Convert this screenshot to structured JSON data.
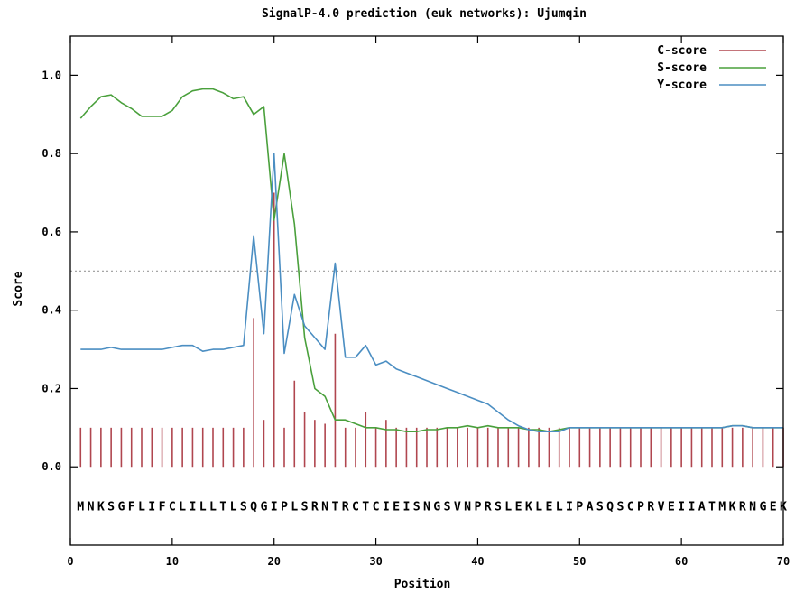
{
  "chart_data": {
    "type": "line",
    "title": "SignalP-4.0 prediction (euk networks): Ujumqin",
    "xlabel": "Position",
    "ylabel": "Score",
    "xlim": [
      0,
      70
    ],
    "ylim": [
      -0.2,
      1.1
    ],
    "x_ticks": [
      0,
      10,
      20,
      30,
      40,
      50,
      60,
      70
    ],
    "y_ticks": [
      0.0,
      0.2,
      0.4,
      0.6,
      0.8,
      1.0
    ],
    "x_tick_labels": [
      "0",
      "10",
      "20",
      "30",
      "40",
      "50",
      "60",
      "70"
    ],
    "y_tick_labels": [
      "0.0",
      "0.2",
      "0.4",
      "0.6",
      "0.8",
      "1.0"
    ],
    "threshold": 0.5,
    "legend_position": "top-right",
    "sequence": "MNKSGFLIFCLILLTLSQGIPLSRNTRCTCIEISNGSVNPRSLEKLELIPASQSCPRVEIIATMKRNGEK",
    "series": [
      {
        "name": "C-score",
        "style": "impulses",
        "color": "#b0464f",
        "x": [
          1,
          2,
          3,
          4,
          5,
          6,
          7,
          8,
          9,
          10,
          11,
          12,
          13,
          14,
          15,
          16,
          17,
          18,
          19,
          20,
          21,
          22,
          23,
          24,
          25,
          26,
          27,
          28,
          29,
          30,
          31,
          32,
          33,
          34,
          35,
          36,
          37,
          38,
          39,
          40,
          41,
          42,
          43,
          44,
          45,
          46,
          47,
          48,
          49,
          50,
          51,
          52,
          53,
          54,
          55,
          56,
          57,
          58,
          59,
          60,
          61,
          62,
          63,
          64,
          65,
          66,
          67,
          68,
          69,
          70
        ],
        "values": [
          0.1,
          0.1,
          0.1,
          0.1,
          0.1,
          0.1,
          0.1,
          0.1,
          0.1,
          0.1,
          0.1,
          0.1,
          0.1,
          0.1,
          0.1,
          0.1,
          0.1,
          0.38,
          0.12,
          0.7,
          0.1,
          0.22,
          0.14,
          0.12,
          0.11,
          0.34,
          0.1,
          0.1,
          0.14,
          0.1,
          0.12,
          0.1,
          0.1,
          0.1,
          0.1,
          0.1,
          0.1,
          0.1,
          0.1,
          0.1,
          0.1,
          0.1,
          0.1,
          0.1,
          0.1,
          0.1,
          0.1,
          0.1,
          0.1,
          0.1,
          0.1,
          0.1,
          0.1,
          0.1,
          0.1,
          0.1,
          0.1,
          0.1,
          0.1,
          0.1,
          0.1,
          0.1,
          0.1,
          0.1,
          0.1,
          0.1,
          0.1,
          0.1,
          0.1,
          0.1
        ]
      },
      {
        "name": "S-score",
        "style": "line",
        "color": "#4aa03c",
        "x": [
          1,
          2,
          3,
          4,
          5,
          6,
          7,
          8,
          9,
          10,
          11,
          12,
          13,
          14,
          15,
          16,
          17,
          18,
          19,
          20,
          21,
          22,
          23,
          24,
          25,
          26,
          27,
          28,
          29,
          30,
          31,
          32,
          33,
          34,
          35,
          36,
          37,
          38,
          39,
          40,
          41,
          42,
          43,
          44,
          45,
          46,
          47,
          48,
          49,
          50,
          51,
          52,
          53,
          54,
          55,
          56,
          57,
          58,
          59,
          60,
          61,
          62,
          63,
          64,
          65,
          66,
          67,
          68,
          69,
          70
        ],
        "values": [
          0.89,
          0.92,
          0.945,
          0.95,
          0.93,
          0.915,
          0.895,
          0.895,
          0.895,
          0.91,
          0.945,
          0.96,
          0.965,
          0.965,
          0.955,
          0.94,
          0.945,
          0.9,
          0.92,
          0.63,
          0.8,
          0.62,
          0.33,
          0.2,
          0.18,
          0.12,
          0.12,
          0.11,
          0.1,
          0.1,
          0.095,
          0.095,
          0.09,
          0.09,
          0.095,
          0.095,
          0.1,
          0.1,
          0.105,
          0.1,
          0.105,
          0.1,
          0.1,
          0.1,
          0.095,
          0.095,
          0.09,
          0.095,
          0.1,
          0.1,
          0.1,
          0.1,
          0.1,
          0.1,
          0.1,
          0.1,
          0.1,
          0.1,
          0.1,
          0.1,
          0.1,
          0.1,
          0.1,
          0.1,
          0.105,
          0.105,
          0.1,
          0.1,
          0.1,
          0.1
        ]
      },
      {
        "name": "Y-score",
        "style": "line",
        "color": "#4b8ec2",
        "x": [
          1,
          2,
          3,
          4,
          5,
          6,
          7,
          8,
          9,
          10,
          11,
          12,
          13,
          14,
          15,
          16,
          17,
          18,
          19,
          20,
          21,
          22,
          23,
          24,
          25,
          26,
          27,
          28,
          29,
          30,
          31,
          32,
          33,
          34,
          35,
          36,
          37,
          38,
          39,
          40,
          41,
          42,
          43,
          44,
          45,
          46,
          47,
          48,
          49,
          50,
          51,
          52,
          53,
          54,
          55,
          56,
          57,
          58,
          59,
          60,
          61,
          62,
          63,
          64,
          65,
          66,
          67,
          68,
          69,
          70
        ],
        "values": [
          0.3,
          0.3,
          0.3,
          0.305,
          0.3,
          0.3,
          0.3,
          0.3,
          0.3,
          0.305,
          0.31,
          0.31,
          0.295,
          0.3,
          0.3,
          0.305,
          0.31,
          0.59,
          0.34,
          0.8,
          0.29,
          0.44,
          0.36,
          0.33,
          0.3,
          0.52,
          0.28,
          0.28,
          0.31,
          0.26,
          0.27,
          0.25,
          0.24,
          0.23,
          0.22,
          0.21,
          0.2,
          0.19,
          0.18,
          0.17,
          0.16,
          0.14,
          0.12,
          0.105,
          0.095,
          0.09,
          0.09,
          0.09,
          0.1,
          0.1,
          0.1,
          0.1,
          0.1,
          0.1,
          0.1,
          0.1,
          0.1,
          0.1,
          0.1,
          0.1,
          0.1,
          0.1,
          0.1,
          0.1,
          0.105,
          0.105,
          0.1,
          0.1,
          0.1,
          0.1
        ]
      }
    ]
  }
}
